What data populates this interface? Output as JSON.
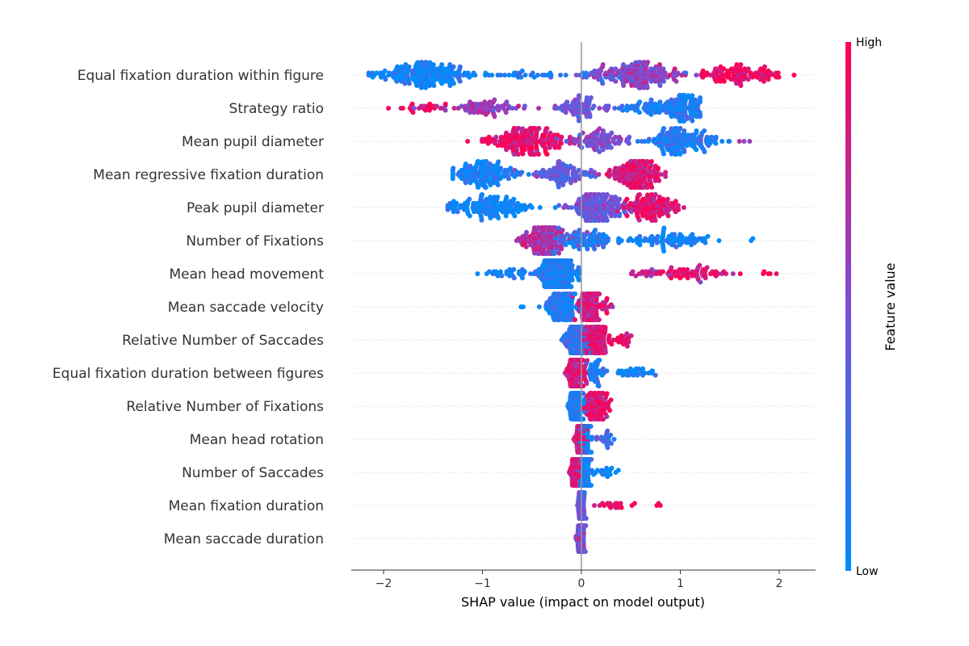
{
  "colors": {
    "low": "#008bfb",
    "mid": "#7c4fd6",
    "high": "#ff0052",
    "zero_line": "#999999",
    "row_grid": "#cccccc"
  },
  "chart_data": {
    "type": "scatter",
    "subtype": "shap-beeswarm",
    "xlabel": "SHAP value (impact on model output)",
    "xlim": [
      -2.35,
      2.35
    ],
    "xticks": [
      -2,
      -1,
      0,
      1,
      2
    ],
    "xtick_labels": [
      "−2",
      "−1",
      "0",
      "1",
      "2"
    ],
    "colorbar": {
      "title": "Feature value",
      "high_label": "High",
      "low_label": "Low"
    },
    "features": [
      {
        "name": "Equal fixation duration within figure",
        "clusters": [
          {
            "c": -1.6,
            "w": 0.55,
            "n": 180,
            "v": 0.05
          },
          {
            "c": -0.6,
            "w": 0.8,
            "n": 40,
            "v": 0.1
          },
          {
            "c": 0.6,
            "w": 0.45,
            "n": 150,
            "v": 0.55
          },
          {
            "c": 1.6,
            "w": 0.55,
            "n": 110,
            "v": 0.92
          },
          {
            "c": 0.2,
            "w": 0.25,
            "n": 25,
            "v": 0.5
          }
        ],
        "range": [
          -2.15,
          2.15
        ]
      },
      {
        "name": "Strategy ratio",
        "clusters": [
          {
            "c": -1.6,
            "w": 0.35,
            "n": 25,
            "v": 0.95
          },
          {
            "c": -1.0,
            "w": 0.4,
            "n": 70,
            "v": 0.6
          },
          {
            "c": 0.0,
            "w": 0.35,
            "n": 70,
            "v": 0.45
          },
          {
            "c": 1.0,
            "w": 0.25,
            "n": 110,
            "v": 0.1
          },
          {
            "c": 0.6,
            "w": 0.25,
            "n": 40,
            "v": 0.1
          }
        ],
        "range": [
          -1.95,
          1.2
        ]
      },
      {
        "name": "Mean pupil diameter",
        "clusters": [
          {
            "c": -0.55,
            "w": 0.45,
            "n": 200,
            "v": 0.9
          },
          {
            "c": 0.2,
            "w": 0.35,
            "n": 90,
            "v": 0.5
          },
          {
            "c": 1.0,
            "w": 0.4,
            "n": 150,
            "v": 0.12
          },
          {
            "c": 1.65,
            "w": 0.1,
            "n": 3,
            "v": 0.4
          }
        ],
        "range": [
          -1.15,
          1.8
        ]
      },
      {
        "name": "Mean regressive fixation duration",
        "clusters": [
          {
            "c": -1.0,
            "w": 0.35,
            "n": 140,
            "v": 0.05
          },
          {
            "c": -0.2,
            "w": 0.35,
            "n": 90,
            "v": 0.4
          },
          {
            "c": 0.55,
            "w": 0.25,
            "n": 190,
            "v": 0.85
          }
        ],
        "range": [
          -1.3,
          0.85
        ]
      },
      {
        "name": "Peak pupil diameter",
        "clusters": [
          {
            "c": -0.9,
            "w": 0.5,
            "n": 140,
            "v": 0.05
          },
          {
            "c": 0.15,
            "w": 0.3,
            "n": 170,
            "v": 0.45
          },
          {
            "c": 0.7,
            "w": 0.3,
            "n": 120,
            "v": 0.9
          }
        ],
        "range": [
          -1.35,
          1.15
        ]
      },
      {
        "name": "Number of Fixations",
        "clusters": [
          {
            "c": -0.4,
            "w": 0.25,
            "n": 160,
            "v": 0.7
          },
          {
            "c": 0.0,
            "w": 0.35,
            "n": 90,
            "v": 0.15
          },
          {
            "c": 0.9,
            "w": 0.5,
            "n": 80,
            "v": 0.05
          },
          {
            "c": 1.75,
            "w": 0.05,
            "n": 2,
            "v": 0.0
          }
        ],
        "range": [
          -0.8,
          1.8
        ]
      },
      {
        "name": "Mean head movement",
        "clusters": [
          {
            "c": -0.25,
            "w": 0.2,
            "n": 280,
            "v": 0.1
          },
          {
            "c": -0.75,
            "w": 0.25,
            "n": 30,
            "v": 0.05
          },
          {
            "c": 1.1,
            "w": 0.65,
            "n": 80,
            "v": 0.85
          },
          {
            "c": 1.9,
            "w": 0.1,
            "n": 5,
            "v": 0.95
          }
        ],
        "range": [
          -1.05,
          2.0
        ]
      },
      {
        "name": "Mean saccade velocity",
        "clusters": [
          {
            "c": -0.2,
            "w": 0.2,
            "n": 140,
            "v": 0.1
          },
          {
            "c": 0.1,
            "w": 0.15,
            "n": 160,
            "v": 0.85
          },
          {
            "c": -0.6,
            "w": 0.05,
            "n": 2,
            "v": 0.05
          }
        ],
        "range": [
          -0.65,
          0.35
        ]
      },
      {
        "name": "Relative Number of Saccades",
        "clusters": [
          {
            "c": -0.05,
            "w": 0.12,
            "n": 200,
            "v": 0.2
          },
          {
            "c": 0.15,
            "w": 0.15,
            "n": 120,
            "v": 0.85
          },
          {
            "c": 0.4,
            "w": 0.1,
            "n": 20,
            "v": 0.9
          }
        ],
        "range": [
          -0.25,
          0.55
        ]
      },
      {
        "name": "Equal fixation duration between figures",
        "clusters": [
          {
            "c": -0.05,
            "w": 0.1,
            "n": 200,
            "v": 0.85
          },
          {
            "c": 0.15,
            "w": 0.1,
            "n": 40,
            "v": 0.1
          },
          {
            "c": 0.55,
            "w": 0.25,
            "n": 30,
            "v": 0.05
          }
        ],
        "range": [
          -0.25,
          0.85
        ]
      },
      {
        "name": "Relative Number of Fixations",
        "clusters": [
          {
            "c": -0.05,
            "w": 0.08,
            "n": 200,
            "v": 0.1
          },
          {
            "c": 0.15,
            "w": 0.15,
            "n": 110,
            "v": 0.9
          }
        ],
        "range": [
          -0.2,
          0.35
        ]
      },
      {
        "name": "Mean head rotation",
        "clusters": [
          {
            "c": 0.0,
            "w": 0.08,
            "n": 180,
            "v": 0.85
          },
          {
            "c": 0.05,
            "w": 0.06,
            "n": 150,
            "v": 0.05
          },
          {
            "c": 0.25,
            "w": 0.1,
            "n": 20,
            "v": 0.3
          }
        ],
        "range": [
          -0.2,
          0.38
        ]
      },
      {
        "name": "Number of Saccades",
        "clusters": [
          {
            "c": -0.05,
            "w": 0.06,
            "n": 180,
            "v": 0.85
          },
          {
            "c": 0.05,
            "w": 0.06,
            "n": 150,
            "v": 0.05
          },
          {
            "c": 0.25,
            "w": 0.12,
            "n": 15,
            "v": 0.05
          }
        ],
        "range": [
          -0.2,
          0.45
        ]
      },
      {
        "name": "Mean fixation duration",
        "clusters": [
          {
            "c": 0.0,
            "w": 0.03,
            "n": 300,
            "v": 0.4
          },
          {
            "c": 0.35,
            "w": 0.25,
            "n": 20,
            "v": 0.95
          },
          {
            "c": 0.78,
            "w": 0.03,
            "n": 3,
            "v": 0.95
          }
        ],
        "range": [
          -0.1,
          0.8
        ]
      },
      {
        "name": "Mean saccade duration",
        "clusters": [
          {
            "c": 0.0,
            "w": 0.04,
            "n": 300,
            "v": 0.5
          }
        ],
        "range": [
          -0.12,
          0.1
        ]
      }
    ]
  }
}
